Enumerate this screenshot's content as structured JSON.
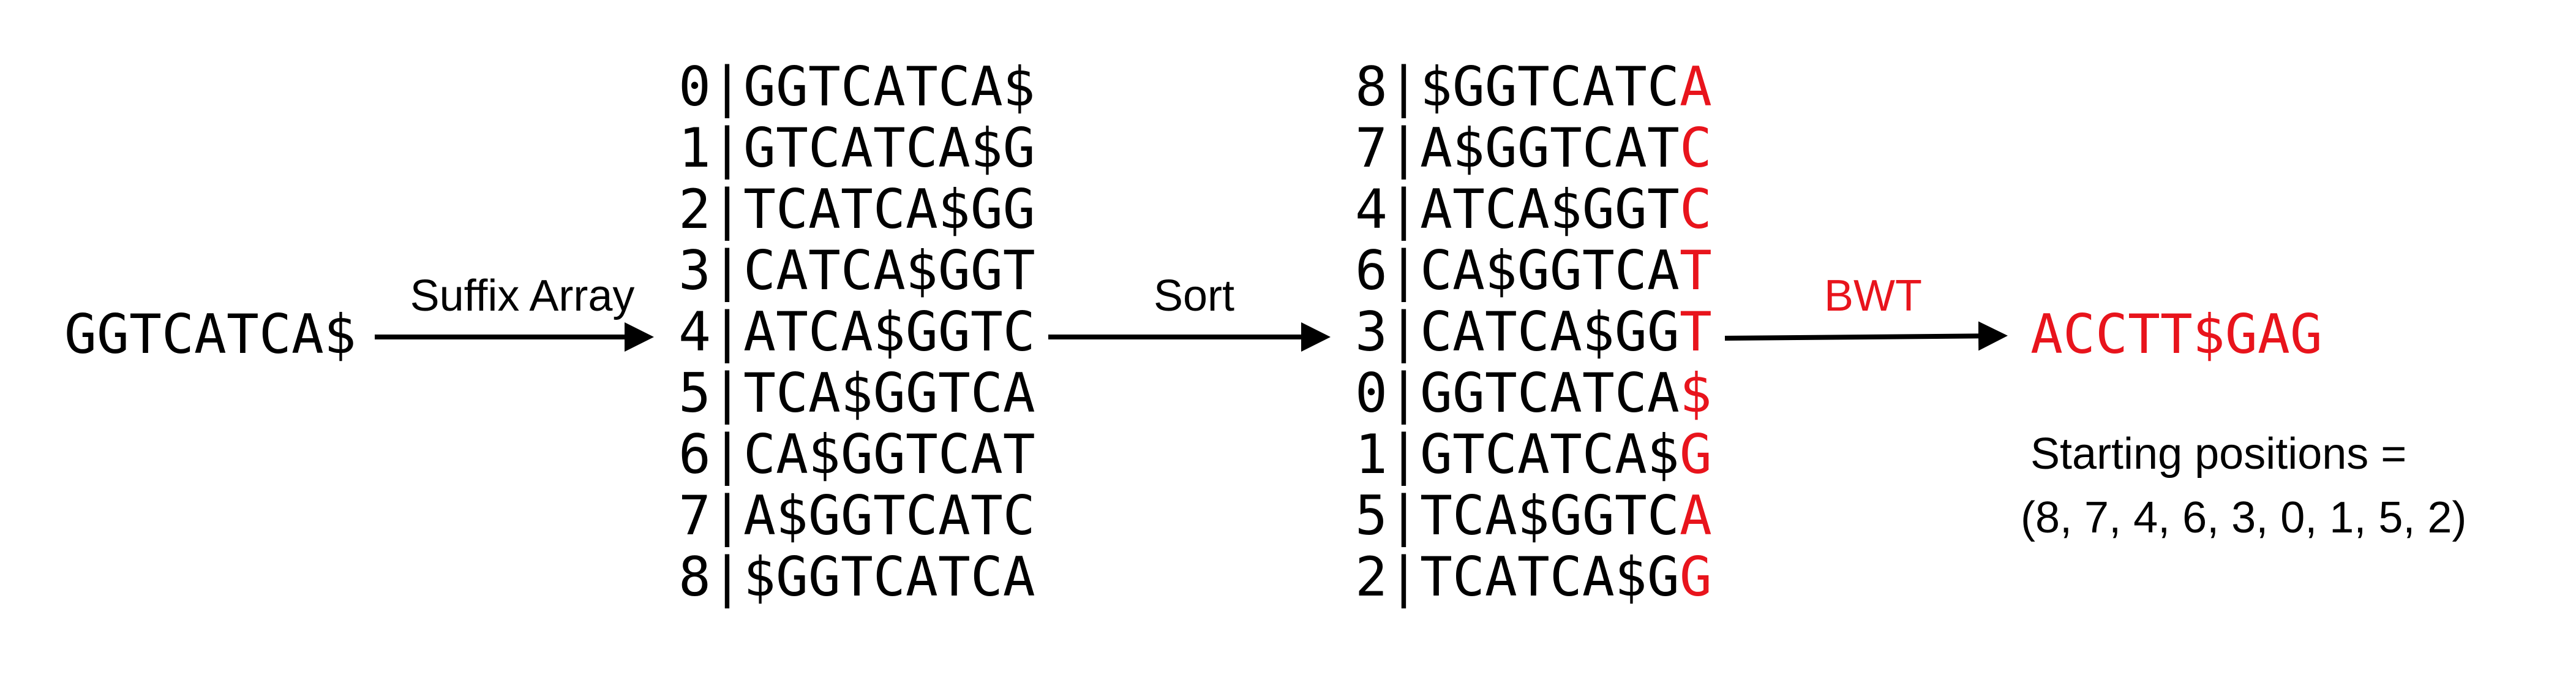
{
  "input": "GGTCATCA$",
  "step1_label": "Suffix Array",
  "rotations": [
    "0|GGTCATCA$",
    "1|GTCATCA$G",
    "2|TCATCA$GG",
    "3|CATCA$GGT",
    "4|ATCA$GGTC",
    "5|TCA$GGTCA",
    "6|CA$GGTCAT",
    "7|A$GGTCATC",
    "8|$GGTCATCA"
  ],
  "step2_label": "Sort",
  "sorted": [
    {
      "prefix": "8|$GGTCATC",
      "last": "A"
    },
    {
      "prefix": "7|A$GGTCAT",
      "last": "C"
    },
    {
      "prefix": "4|ATCA$GGT",
      "last": "C"
    },
    {
      "prefix": "6|CA$GGTCA",
      "last": "T"
    },
    {
      "prefix": "3|CATCA$GG",
      "last": "T"
    },
    {
      "prefix": "0|GGTCATCA",
      "last": "$"
    },
    {
      "prefix": "1|GTCATCA$",
      "last": "G"
    },
    {
      "prefix": "5|TCA$GGTC",
      "last": "A"
    },
    {
      "prefix": "2|TCATCA$G",
      "last": "G"
    }
  ],
  "step3_label": "BWT",
  "output": "ACCTT$GAG",
  "positions_line1": "Starting positions =",
  "positions_line2": "(8, 7, 4, 6, 3, 0, 1, 5, 2)"
}
